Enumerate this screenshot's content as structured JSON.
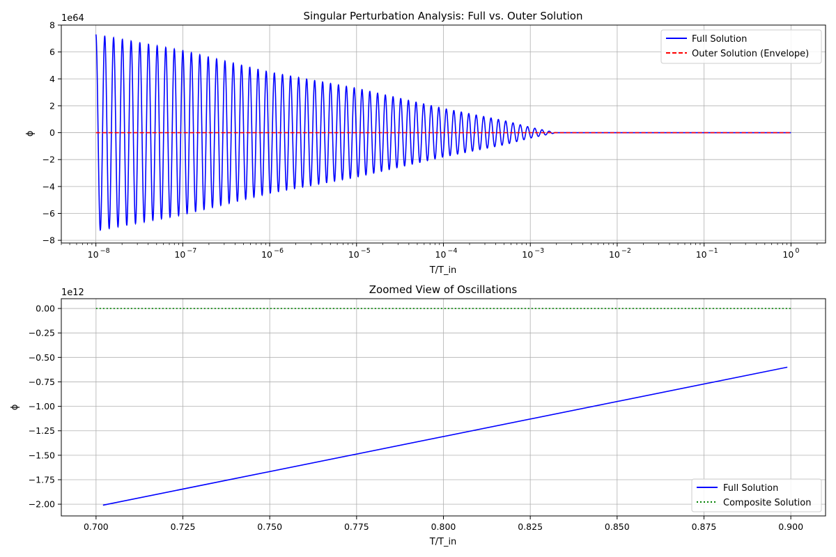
{
  "chart_data": [
    {
      "type": "line",
      "title": "Singular Perturbation Analysis: Full vs. Outer Solution",
      "xlabel": "T/T_in",
      "ylabel": "ϕ",
      "x_scale": "log",
      "xlim": [
        4e-09,
        2.5
      ],
      "ylim": [
        -8.2,
        8.0
      ],
      "y_multiplier_label": "1e64",
      "y_multiplier": 1e+64,
      "grid": true,
      "legend_position": "upper right",
      "x_ticks": [
        {
          "value": 1e-08,
          "label": "10"
        },
        {
          "value": 1e-07,
          "label": "10"
        },
        {
          "value": 1e-06,
          "label": "10"
        },
        {
          "value": 1e-05,
          "label": "10"
        },
        {
          "value": 0.0001,
          "label": "10"
        },
        {
          "value": 0.001,
          "label": "10"
        },
        {
          "value": 0.01,
          "label": "10"
        },
        {
          "value": 0.1,
          "label": "10"
        },
        {
          "value": 1,
          "label": "10"
        }
      ],
      "x_tick_exponents": [
        "−8",
        "−7",
        "−6",
        "−5",
        "−4",
        "−3",
        "−2",
        "−1",
        "0"
      ],
      "y_ticks": [
        "−8",
        "−6",
        "−4",
        "−2",
        "0",
        "2",
        "4",
        "6",
        "8"
      ],
      "y_tick_values": [
        -8,
        -6,
        -4,
        -2,
        0,
        2,
        4,
        6,
        8
      ],
      "series": [
        {
          "name": "Full Solution",
          "color": "#0000ff",
          "style": "solid",
          "description_shape": "oscillation",
          "x_start": 1e-08,
          "x_end": 1.0,
          "decay_end": 0.002,
          "envelope_keypoints": [
            [
              1e-08,
              7.3
            ],
            [
              1e-07,
              6.1
            ],
            [
              1e-06,
              4.5
            ],
            [
              1e-05,
              3.3
            ],
            [
              0.0001,
              1.8
            ],
            [
              0.0005,
              0.9
            ],
            [
              0.001,
              0.4
            ],
            [
              0.002,
              0.0
            ]
          ],
          "oscillation_count": 58
        },
        {
          "name": "Outer Solution (Envelope)",
          "color": "#ff0000",
          "style": "dashed",
          "x": [
            1e-08,
            1.0
          ],
          "y": [
            0,
            0
          ]
        }
      ]
    },
    {
      "type": "line",
      "title": "Zoomed View of Oscillations",
      "xlabel": "T/T_in",
      "ylabel": "ϕ",
      "x_scale": "linear",
      "xlim": [
        0.69,
        0.91
      ],
      "ylim": [
        -2.12,
        0.1
      ],
      "y_multiplier_label": "1e12",
      "y_multiplier": 1000000000000.0,
      "grid": true,
      "legend_position": "lower right",
      "x_ticks": [
        "0.700",
        "0.725",
        "0.750",
        "0.775",
        "0.800",
        "0.825",
        "0.850",
        "0.875",
        "0.900"
      ],
      "x_tick_values": [
        0.7,
        0.725,
        0.75,
        0.775,
        0.8,
        0.825,
        0.85,
        0.875,
        0.9
      ],
      "y_ticks": [
        "−2.00",
        "−1.75",
        "−1.50",
        "−1.25",
        "−1.00",
        "−0.75",
        "−0.50",
        "−0.25",
        "0.00"
      ],
      "y_tick_values": [
        -2.0,
        -1.75,
        -1.5,
        -1.25,
        -1.0,
        -0.75,
        -0.5,
        -0.25,
        0.0
      ],
      "series": [
        {
          "name": "Full Solution",
          "color": "#0000ff",
          "style": "solid",
          "x": [
            0.702,
            0.899
          ],
          "y": [
            -2.01,
            -0.6
          ]
        },
        {
          "name": "Composite Solution",
          "color": "#008000",
          "style": "dotted",
          "x": [
            0.7,
            0.9
          ],
          "y": [
            0.0,
            0.0
          ]
        }
      ]
    }
  ]
}
